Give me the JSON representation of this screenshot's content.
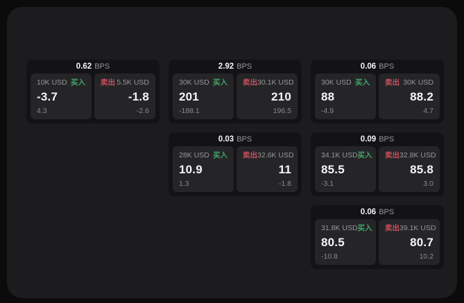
{
  "colors": {
    "page_bg": "#0b0b0b",
    "panel_bg": "#1c1c1e",
    "card_bg": "#131315",
    "subcard_bg": "#252528",
    "buy_green": "#42a568",
    "sell_red": "#c9505e",
    "text_primary": "#f5f5f7",
    "text_muted": "#97979c",
    "text_dim": "#8a8a8f"
  },
  "labels": {
    "bps_suffix": "BPS",
    "buy": "买入",
    "sell": "卖出"
  },
  "cards": [
    {
      "bps": "0.62",
      "buy": {
        "size": "10K USD",
        "price": "-3.7",
        "delta": "4.3"
      },
      "sell": {
        "size": "5.5K USD",
        "price": "-1.8",
        "delta": "-2.6"
      }
    },
    {
      "bps": "2.92",
      "buy": {
        "size": "30K USD",
        "price": "201",
        "delta": "-188.1"
      },
      "sell": {
        "size": "30.1K USD",
        "price": "210",
        "delta": "196.5"
      }
    },
    {
      "bps": "0.06",
      "buy": {
        "size": "30K USD",
        "price": "88",
        "delta": "-4.9"
      },
      "sell": {
        "size": "30K USD",
        "price": "88.2",
        "delta": "4.7"
      }
    },
    {
      "bps": "0.03",
      "buy": {
        "size": "28K USD",
        "price": "10.9",
        "delta": "1.3"
      },
      "sell": {
        "size": "32.6K USD",
        "price": "11",
        "delta": "-1.8"
      }
    },
    {
      "bps": "0.09",
      "buy": {
        "size": "34.1K USD",
        "price": "85.5",
        "delta": "-3.1"
      },
      "sell": {
        "size": "32.8K USD",
        "price": "85.8",
        "delta": "3.0"
      }
    },
    {
      "bps": "0.06",
      "buy": {
        "size": "31.8K USD",
        "price": "80.5",
        "delta": "-10.8"
      },
      "sell": {
        "size": "39.1K USD",
        "price": "80.7",
        "delta": "10.2"
      }
    }
  ]
}
